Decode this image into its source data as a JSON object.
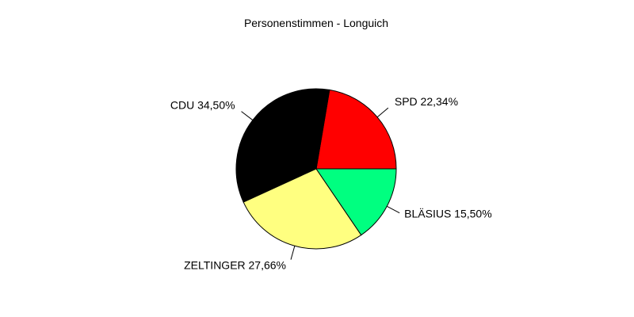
{
  "chart_data": {
    "type": "pie",
    "title": "Personenstimmen - Longuich",
    "slices": [
      {
        "name": "SPD",
        "value": 22.34,
        "label": "SPD 22,34%",
        "color": "#ff0000"
      },
      {
        "name": "CDU",
        "value": 34.5,
        "label": "CDU 34,50%",
        "color": "#000000"
      },
      {
        "name": "ZELTINGER",
        "value": 27.66,
        "label": "ZELTINGER 27,66%",
        "color": "#ffff80"
      },
      {
        "name": "BLÄSIUS",
        "value": 15.5,
        "label": "BLÄSIUS 15,50%",
        "color": "#00ff80"
      }
    ],
    "start_angle_deg": 0,
    "direction": "counterclockwise",
    "legend": "none"
  }
}
